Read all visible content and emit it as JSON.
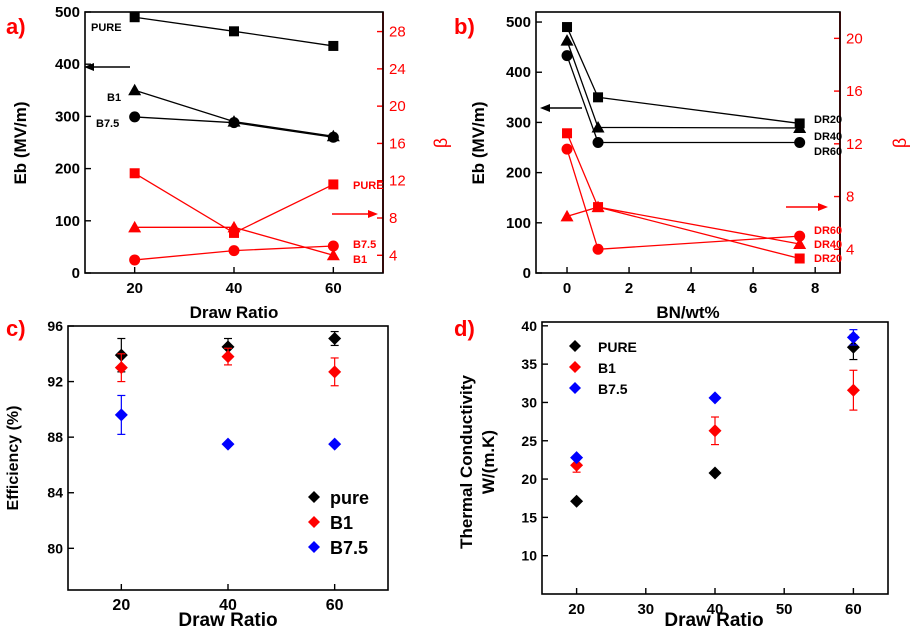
{
  "chart_data": [
    {
      "panel": "a)",
      "type": "line",
      "xlabel": "Draw Ratio",
      "ylabel": "Eb (MV/m)",
      "y2label": "β",
      "xlim": [
        10,
        70
      ],
      "ylim": [
        0,
        500
      ],
      "y2lim": [
        2.1,
        30.1
      ],
      "xticks": [
        20,
        40,
        60
      ],
      "yticks": [
        0,
        100,
        200,
        300,
        400,
        500
      ],
      "y2ticks": [
        4,
        8,
        12,
        16,
        20,
        24,
        28
      ],
      "axis_color_left": "#000000",
      "axis_color_right": "#ff0000",
      "series": [
        {
          "name": "PURE",
          "axis": "left",
          "marker": "square",
          "color": "#000000",
          "x": [
            20,
            40,
            60
          ],
          "y": [
            490,
            463,
            435
          ]
        },
        {
          "name": "B1",
          "axis": "left",
          "marker": "triangle",
          "color": "#000000",
          "x": [
            20,
            40,
            60
          ],
          "y": [
            350,
            290,
            262
          ]
        },
        {
          "name": "B7.5",
          "axis": "left",
          "marker": "circle",
          "color": "#000000",
          "x": [
            20,
            40,
            60
          ],
          "y": [
            299,
            288,
            260
          ]
        },
        {
          "name": "PURE",
          "axis": "right",
          "marker": "square",
          "color": "#ff0000",
          "x": [
            20,
            40,
            60
          ],
          "y": [
            12.8,
            6.4,
            11.6
          ]
        },
        {
          "name": "B7.5",
          "axis": "right",
          "marker": "circle",
          "color": "#ff0000",
          "x": [
            20,
            40,
            60
          ],
          "y": [
            3.5,
            4.5,
            5.0
          ]
        },
        {
          "name": "B1",
          "axis": "right",
          "marker": "triangle",
          "color": "#ff0000",
          "x": [
            20,
            40,
            60
          ],
          "y": [
            7.0,
            7.0,
            4.0
          ]
        }
      ]
    },
    {
      "panel": "b)",
      "type": "line",
      "xlabel": "BN/wt%",
      "ylabel": "Eb (MV/m)",
      "y2label": "β",
      "xlim": [
        -1,
        8.8
      ],
      "ylim": [
        0,
        520
      ],
      "y2lim": [
        2.2,
        22
      ],
      "xticks": [
        0,
        2,
        4,
        6,
        8
      ],
      "yticks": [
        0,
        100,
        200,
        300,
        400,
        500
      ],
      "y2ticks": [
        4,
        8,
        12,
        16,
        20
      ],
      "series": [
        {
          "name": "DR20",
          "axis": "left",
          "marker": "square",
          "color": "#000000",
          "x": [
            0,
            1,
            7.5
          ],
          "y": [
            490,
            350,
            298
          ]
        },
        {
          "name": "DR40",
          "axis": "left",
          "marker": "triangle",
          "color": "#000000",
          "x": [
            0,
            1,
            7.5
          ],
          "y": [
            463,
            290,
            289
          ]
        },
        {
          "name": "DR60",
          "axis": "left",
          "marker": "circle",
          "color": "#000000",
          "x": [
            0,
            1,
            7.5
          ],
          "y": [
            433,
            260,
            260
          ]
        },
        {
          "name": "DR20",
          "axis": "right",
          "marker": "square",
          "color": "#ff0000",
          "x": [
            0,
            1,
            7.5
          ],
          "y": [
            12.8,
            7.2,
            3.3
          ]
        },
        {
          "name": "DR40",
          "axis": "right",
          "marker": "triangle",
          "color": "#ff0000",
          "x": [
            0,
            1,
            7.5
          ],
          "y": [
            6.5,
            7.2,
            4.4
          ]
        },
        {
          "name": "DR60",
          "axis": "right",
          "marker": "circle",
          "color": "#ff0000",
          "x": [
            0,
            1,
            7.5
          ],
          "y": [
            11.6,
            4.0,
            5.0
          ]
        }
      ]
    },
    {
      "panel": "c)",
      "type": "scatter",
      "xlabel": "Draw Ratio",
      "ylabel": "Efficiency (%)",
      "xlim": [
        10,
        70
      ],
      "ylim": [
        77,
        96
      ],
      "xticks": [
        20,
        40,
        60
      ],
      "yticks": [
        80,
        84,
        88,
        92,
        96
      ],
      "legend": "bottom-right",
      "series": [
        {
          "name": "pure",
          "color": "#000000",
          "x": [
            20,
            40,
            60
          ],
          "y": [
            93.9,
            94.5,
            95.1
          ],
          "err": [
            1.2,
            0.6,
            0.5
          ]
        },
        {
          "name": "B1",
          "color": "#ff0000",
          "x": [
            20,
            40,
            60
          ],
          "y": [
            93.0,
            93.8,
            92.7
          ],
          "err": [
            1.0,
            0.6,
            1.0
          ]
        },
        {
          "name": "B7.5",
          "color": "#0000ff",
          "x": [
            20,
            40,
            60
          ],
          "y": [
            89.6,
            87.5,
            87.5
          ],
          "err": [
            1.4,
            0,
            0
          ]
        }
      ]
    },
    {
      "panel": "d)",
      "type": "scatter",
      "xlabel": "Draw Ratio",
      "ylabel_line1": "Thermal Conductivity",
      "ylabel_line2": "W/(m.K)",
      "xlim": [
        15,
        65
      ],
      "ylim": [
        5,
        40.5
      ],
      "xticks": [
        20,
        30,
        40,
        50,
        60
      ],
      "yticks": [
        10,
        15,
        20,
        25,
        30,
        35,
        40
      ],
      "legend": "top-left",
      "series": [
        {
          "name": "PURE",
          "color": "#000000",
          "x": [
            20,
            40,
            60
          ],
          "y": [
            17.1,
            20.8,
            37.2
          ],
          "err": [
            0,
            0,
            1.6
          ]
        },
        {
          "name": "B1",
          "color": "#ff0000",
          "x": [
            20,
            40,
            60
          ],
          "y": [
            21.8,
            26.3,
            31.6
          ],
          "err": [
            0.9,
            1.8,
            2.6
          ]
        },
        {
          "name": "B7.5",
          "color": "#0000ff",
          "x": [
            20,
            40,
            60
          ],
          "y": [
            22.8,
            30.6,
            38.5
          ],
          "err": [
            0,
            0,
            1.0
          ]
        }
      ]
    }
  ]
}
